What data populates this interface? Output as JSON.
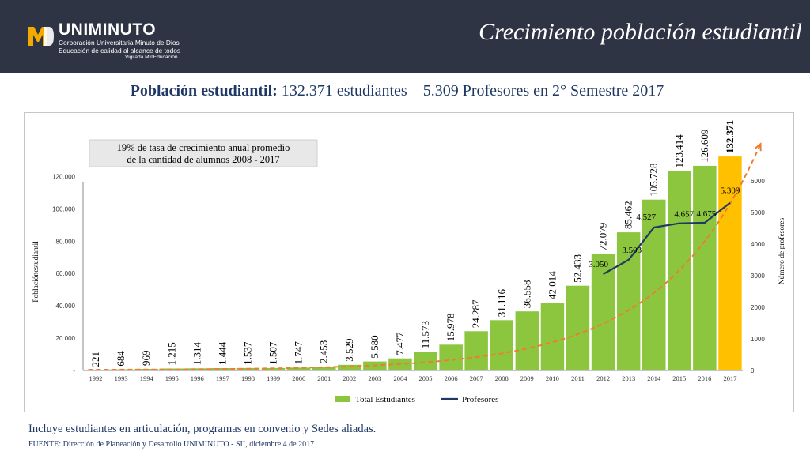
{
  "header": {
    "title": "Crecimiento población estudiantil",
    "logo": {
      "mark": "MD",
      "name": "UNIMINUTO",
      "line1": "Corporación Universitaria Minuto de Dios",
      "line2": "Educación de calidad al alcance de todos",
      "line3": "Vigilada MinEducación"
    }
  },
  "subtitle": {
    "bold": "Población estudiantil:",
    "rest": " 132.371 estudiantes – 5.309 Profesores en 2° Semestre 2017"
  },
  "footer": {
    "note": "Incluye estudiantes en articulación, programas en convenio y Sedes aliadas.",
    "source": "FUENTE:  Dirección de Planeación y Desarrollo UNIMINUTO - SII, diciembre 4 de 2017"
  },
  "colors": {
    "header_bg": "#2f3445",
    "bar": "#8cc63f",
    "bar_highlight": "#ffc000",
    "line": "#1f3864",
    "trend": "#ed7d31",
    "text": "#1f3864"
  },
  "chart_data": {
    "type": "bar",
    "annotation": "19% de tasa de crecimiento anual promedio\nde la cantidad de alumnos 2008 - 2017",
    "ylabel": "Poblaciónestudiantil",
    "y2label": "Número de profesores",
    "ylim": [
      0,
      130000
    ],
    "y2lim": [
      0,
      6000
    ],
    "yticks": [
      "-",
      "20.000",
      "40.000",
      "60.000",
      "80.000",
      "100.000",
      "120.000"
    ],
    "y2ticks": [
      "0",
      "1000",
      "2000",
      "3000",
      "4000",
      "5000",
      "6000"
    ],
    "categories": [
      "1992",
      "1993",
      "1994",
      "1995",
      "1996",
      "1997",
      "1998",
      "1999",
      "2000",
      "2001",
      "2002",
      "2003",
      "2004",
      "2005",
      "2006",
      "2007",
      "2008",
      "2009",
      "2010",
      "2011",
      "2012",
      "2013",
      "2014",
      "2015",
      "2016",
      "2017"
    ],
    "series": [
      {
        "name": "Total Estudiantes",
        "type": "bar",
        "values": [
          221,
          684,
          969,
          1215,
          1314,
          1444,
          1537,
          1507,
          1747,
          2453,
          3529,
          5580,
          7477,
          11573,
          15978,
          24287,
          31116,
          36558,
          42014,
          52433,
          72079,
          85462,
          105728,
          123414,
          126609,
          132371
        ],
        "labels": [
          "221",
          "684",
          "969",
          "1.215",
          "1.314",
          "1.444",
          "1.537",
          "1.507",
          "1.747",
          "2.453",
          "3.529",
          "5.580",
          "7.477",
          "11.573",
          "15.978",
          "24.287",
          "31.116",
          "36.558",
          "42.014",
          "52.433",
          "72.079",
          "85.462",
          "105.728",
          "123.414",
          "126.609",
          "132.371"
        ]
      },
      {
        "name": "Profesores",
        "type": "line",
        "x": [
          "2012",
          "2013",
          "2014",
          "2015",
          "2016",
          "2017"
        ],
        "values": [
          3050,
          3503,
          4527,
          4657,
          4675,
          5309
        ],
        "labels": [
          "3.050",
          "3.503",
          "4.527",
          "4.657",
          "4.675",
          "5.309"
        ]
      }
    ],
    "trendline": "exponential",
    "highlight_category": "2017",
    "legend_position": "bottom"
  }
}
